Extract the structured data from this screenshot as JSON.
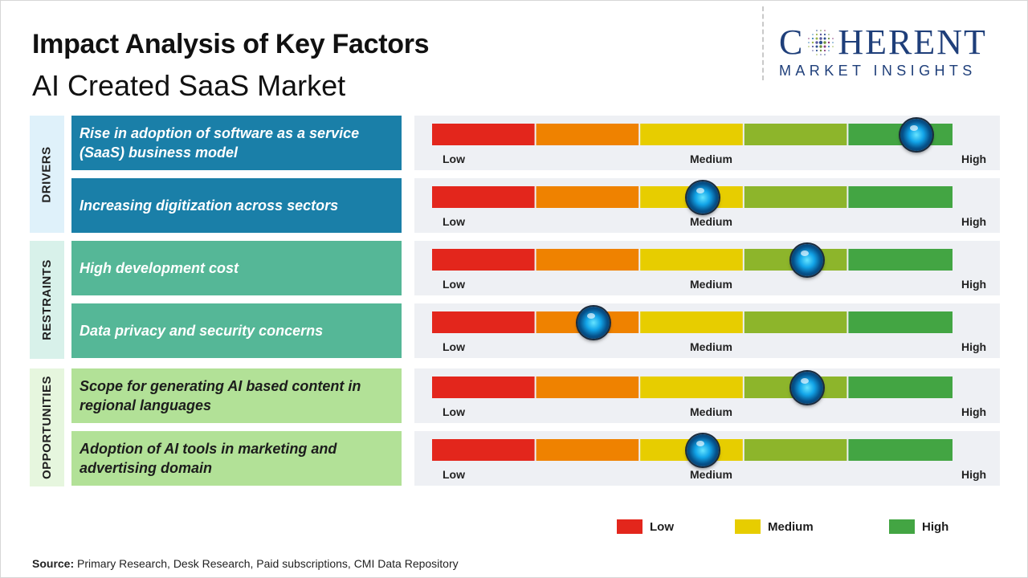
{
  "header": {
    "title": "Impact Analysis of Key Factors",
    "subtitle": "AI Created SaaS Market"
  },
  "logo": {
    "word_left": "C",
    "word_right": "HERENT",
    "tagline": "MARKET INSIGHTS",
    "brand_color": "#1f3f7a"
  },
  "colors": {
    "segments": [
      "#e3261c",
      "#ef8200",
      "#e7cd00",
      "#8db52b",
      "#43a543"
    ],
    "drivers_tab": "#dff1fa",
    "drivers_box": "#1a7fa8",
    "restraints_tab": "#d8f1ea",
    "restraints_box": "#55b797",
    "opportunities_tab": "#e6f6de",
    "opportunities_box": "#b2e197",
    "legend_low": "#e3261c",
    "legend_medium": "#e7cd00",
    "legend_high": "#43a543"
  },
  "categories": [
    {
      "label": "DRIVERS",
      "tab_color": "#dff1fa",
      "box_color": "#1a7fa8",
      "text_color": "#ffffff"
    },
    {
      "label": "RESTRAINTS",
      "tab_color": "#d8f1ea",
      "box_color": "#55b797",
      "text_color": "#ffffff"
    },
    {
      "label": "OPPORTUNITIES",
      "tab_color": "#e6f6de",
      "box_color": "#b2e197",
      "text_color": "#1c1c1c"
    }
  ],
  "scale_labels": {
    "low": "Low",
    "medium": "Medium",
    "high": "High"
  },
  "chart_data": {
    "type": "table",
    "scale": [
      "Low",
      "Medium",
      "High"
    ],
    "range": [
      0,
      1
    ],
    "factors": [
      {
        "category": "DRIVERS",
        "label": "Rise in adoption of software as a service (SaaS) business model",
        "impact": 0.93
      },
      {
        "category": "DRIVERS",
        "label": "Increasing digitization across sectors",
        "impact": 0.52
      },
      {
        "category": "RESTRAINTS",
        "label": "High development cost",
        "impact": 0.72
      },
      {
        "category": "RESTRAINTS",
        "label": "Data privacy and security concerns",
        "impact": 0.31
      },
      {
        "category": "OPPORTUNITIES",
        "label": "Scope for generating AI based content in regional languages",
        "impact": 0.72
      },
      {
        "category": "OPPORTUNITIES",
        "label": "Adoption of AI tools in marketing and advertising domain",
        "impact": 0.52
      }
    ],
    "legend": [
      {
        "label": "Low",
        "color": "#e3261c"
      },
      {
        "label": "Medium",
        "color": "#e7cd00"
      },
      {
        "label": "High",
        "color": "#43a543"
      }
    ]
  },
  "source": {
    "label": "Source:",
    "text": "Primary Research, Desk Research, Paid subscriptions, CMI Data Repository"
  }
}
